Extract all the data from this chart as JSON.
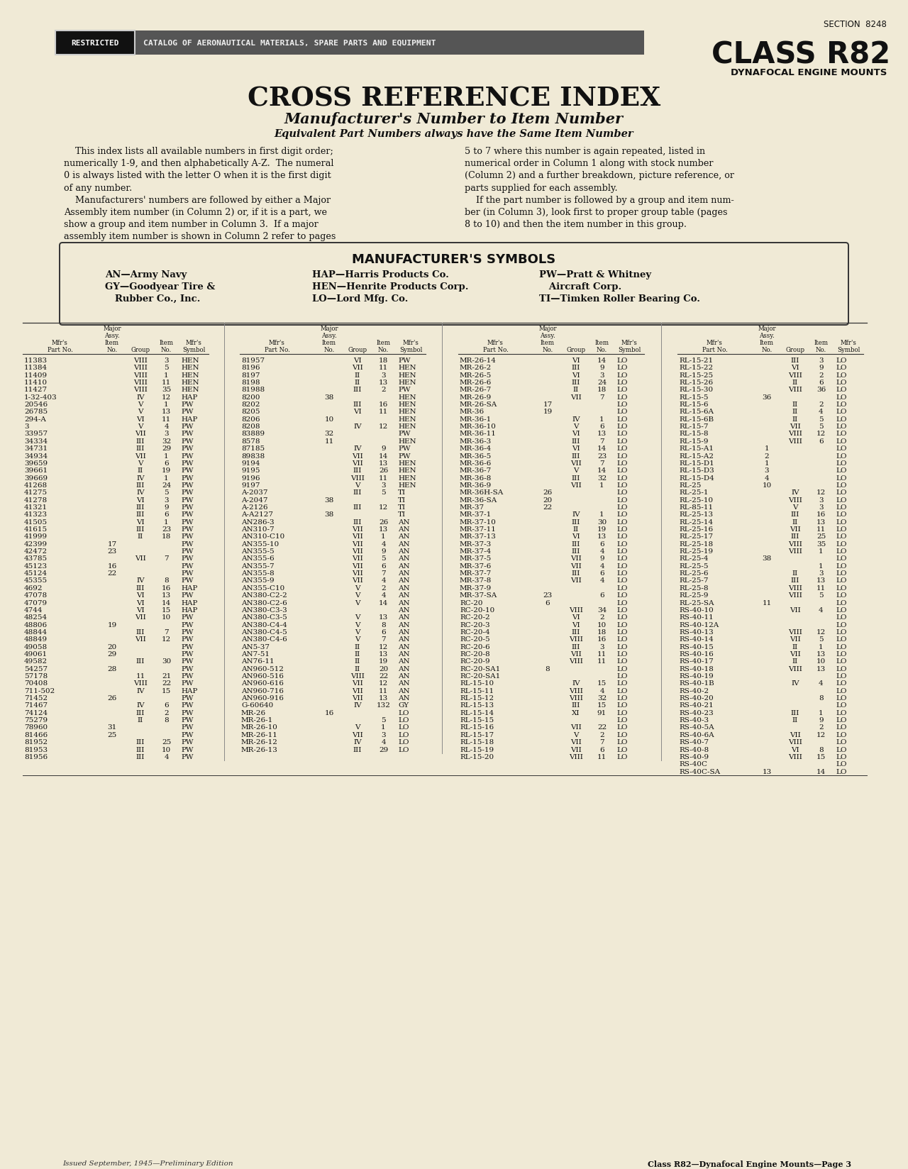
{
  "bg_color": "#f0ead6",
  "page_width": 12.8,
  "page_height": 16.49,
  "header_section": "SECTION  8248",
  "header_class": "CLASS R82",
  "header_dynafocal": "DYNAFOCAL ENGINE MOUNTS",
  "restricted_label": "RESTRICTED",
  "catalog_label": "CATALOG OF AERONAUTICAL MATERIALS, SPARE PARTS AND EQUIPMENT",
  "title_main": "CROSS REFERENCE INDEX",
  "title_sub1": "Manufacturer's Number to Item Number",
  "title_sub2": "Equivalent Part Numbers always have the Same Item Number",
  "body_left": [
    "    This index lists all available numbers in first digit order;",
    "numerically 1-9, and then alphabetically A-Z.  The numeral",
    "0 is always listed with the letter O when it is the first digit",
    "of any number.",
    "    Manufacturers' numbers are followed by either a Major",
    "Assembly item number (in Column 2) or, if it is a part, we",
    "show a group and item number in Column 3.  If a major",
    "assembly item number is shown in Column 2 refer to pages"
  ],
  "body_right": [
    "5 to 7 where this number is again repeated, listed in",
    "numerical order in Column 1 along with stock number",
    "(Column 2) and a further breakdown, picture reference, or",
    "parts supplied for each assembly.",
    "    If the part number is followed by a group and item num-",
    "ber (in Column 3), look first to proper group table (pages",
    "8 to 10) and then the item number in this group."
  ],
  "sym_title": "MANUFACTURER'S SYMBOLS",
  "sym_col1": [
    "AN—Army Navy",
    "GY—Goodyear Tire &",
    "   Rubber Co., Inc."
  ],
  "sym_col2": [
    "HAP—Harris Products Co.",
    "HEN—Henrite Products Corp.",
    "LO—Lord Mfg. Co."
  ],
  "sym_col3": [
    "PW—Pratt & Whitney",
    "   Aircraft Corp.",
    "TI—Timken Roller Bearing Co."
  ],
  "col1_rows": [
    [
      "11383",
      "",
      "VIII",
      "3",
      "HEN"
    ],
    [
      "11384",
      "",
      "VIII",
      "5",
      "HEN"
    ],
    [
      "11409",
      "",
      "VIII",
      "1",
      "HEN"
    ],
    [
      "11410",
      "",
      "VIII",
      "11",
      "HEN"
    ],
    [
      "11427",
      "",
      "VIII",
      "35",
      "HEN"
    ],
    [
      "1-32-403",
      "",
      "IV",
      "12",
      "HAP"
    ],
    [
      "20546",
      "",
      "V",
      "1",
      "PW"
    ],
    [
      "26785",
      "",
      "V",
      "13",
      "PW"
    ],
    [
      "294-A",
      "",
      "VI",
      "11",
      "HAP"
    ],
    [
      "3",
      "",
      "V",
      "4",
      "PW"
    ],
    [
      "33957",
      "",
      "VII",
      "3",
      "PW"
    ],
    [
      "34334",
      "",
      "III",
      "32",
      "PW"
    ],
    [
      "34731",
      "",
      "III",
      "29",
      "PW"
    ],
    [
      "34934",
      "",
      "VII",
      "1",
      "PW"
    ],
    [
      "39659",
      "",
      "V",
      "6",
      "PW"
    ],
    [
      "39661",
      "",
      "II",
      "19",
      "PW"
    ],
    [
      "39669",
      "",
      "IV",
      "1",
      "PW"
    ],
    [
      "41268",
      "",
      "III",
      "24",
      "PW"
    ],
    [
      "41275",
      "",
      "IV",
      "5",
      "PW"
    ],
    [
      "41278",
      "",
      "VI",
      "3",
      "PW"
    ],
    [
      "41321",
      "",
      "III",
      "9",
      "PW"
    ],
    [
      "41323",
      "",
      "III",
      "6",
      "PW"
    ],
    [
      "41505",
      "",
      "VI",
      "1",
      "PW"
    ],
    [
      "41615",
      "",
      "III",
      "23",
      "PW"
    ],
    [
      "41999",
      "",
      "II",
      "18",
      "PW"
    ],
    [
      "42399",
      "17",
      "",
      "",
      "PW"
    ],
    [
      "42472",
      "23",
      "",
      "",
      "PW"
    ],
    [
      "43785",
      "",
      "VII",
      "7",
      "PW"
    ],
    [
      "45123",
      "16",
      "",
      "",
      "PW"
    ],
    [
      "45124",
      "22",
      "",
      "",
      "PW"
    ],
    [
      "45355",
      "",
      "IV",
      "8",
      "PW"
    ],
    [
      "4692",
      "",
      "III",
      "16",
      "HAP"
    ],
    [
      "47078",
      "",
      "VI",
      "13",
      "PW"
    ],
    [
      "47079",
      "",
      "VI",
      "14",
      "HAP"
    ],
    [
      "4744",
      "",
      "VI",
      "15",
      "HAP"
    ],
    [
      "48254",
      "",
      "VII",
      "10",
      "PW"
    ],
    [
      "48806",
      "19",
      "",
      "",
      "PW"
    ],
    [
      "48844",
      "",
      "III",
      "7",
      "PW"
    ],
    [
      "48849",
      "",
      "VII",
      "12",
      "PW"
    ],
    [
      "49058",
      "20",
      "",
      "",
      "PW"
    ],
    [
      "49061",
      "29",
      "",
      "",
      "PW"
    ],
    [
      "49582",
      "",
      "III",
      "30",
      "PW"
    ],
    [
      "54257",
      "28",
      "",
      "",
      "PW"
    ],
    [
      "57178",
      "",
      "11",
      "21",
      "PW"
    ],
    [
      "70408",
      "",
      "VIII",
      "22",
      "PW"
    ],
    [
      "711-502",
      "",
      "IV",
      "15",
      "HAP"
    ],
    [
      "71452",
      "26",
      "",
      "",
      "PW"
    ],
    [
      "71467",
      "",
      "IV",
      "6",
      "PW"
    ],
    [
      "74124",
      "",
      "III",
      "2",
      "PW"
    ],
    [
      "75279",
      "",
      "II",
      "8",
      "PW"
    ],
    [
      "78960",
      "31",
      "",
      "",
      "PW"
    ],
    [
      "81466",
      "25",
      "",
      "",
      "PW"
    ],
    [
      "81952",
      "",
      "III",
      "25",
      "PW"
    ],
    [
      "81953",
      "",
      "III",
      "10",
      "PW"
    ],
    [
      "81956",
      "",
      "III",
      "4",
      "PW"
    ]
  ],
  "col2_rows": [
    [
      "81957",
      "",
      "VI",
      "18",
      "PW"
    ],
    [
      "8196",
      "",
      "VII",
      "11",
      "HEN"
    ],
    [
      "8197",
      "",
      "II",
      "3",
      "HEN"
    ],
    [
      "8198",
      "",
      "II",
      "13",
      "HEN"
    ],
    [
      "81988",
      "",
      "III",
      "2",
      "PW"
    ],
    [
      "8200",
      "38",
      "",
      "",
      "HEN"
    ],
    [
      "8202",
      "",
      "III",
      "16",
      "HEN"
    ],
    [
      "8205",
      "",
      "VI",
      "11",
      "HEN"
    ],
    [
      "8206",
      "10",
      "",
      "",
      "HEN"
    ],
    [
      "8208",
      "",
      "IV",
      "12",
      "HEN"
    ],
    [
      "83889",
      "32",
      "",
      "",
      "PW"
    ],
    [
      "8578",
      "11",
      "",
      "",
      "HEN"
    ],
    [
      "87185",
      "",
      "IV",
      "9",
      "PW"
    ],
    [
      "89838",
      "",
      "VII",
      "14",
      "PW"
    ],
    [
      "9194",
      "",
      "VII",
      "13",
      "HEN"
    ],
    [
      "9195",
      "",
      "III",
      "26",
      "HEN"
    ],
    [
      "9196",
      "",
      "VIII",
      "11",
      "HEN"
    ],
    [
      "9197",
      "",
      "V",
      "3",
      "HEN"
    ],
    [
      "A-2037",
      "",
      "III",
      "5",
      "TI"
    ],
    [
      "A-2047",
      "38",
      "",
      "",
      "TI"
    ],
    [
      "A-2126",
      "",
      "III",
      "12",
      "TI"
    ],
    [
      "A-A2127",
      "38",
      "",
      "",
      "TI"
    ],
    [
      "AN286-3",
      "",
      "III",
      "26",
      "AN"
    ],
    [
      "AN310-7",
      "",
      "VII",
      "13",
      "AN"
    ],
    [
      "AN310-C10",
      "",
      "VII",
      "1",
      "AN"
    ],
    [
      "AN355-10",
      "",
      "VII",
      "4",
      "AN"
    ],
    [
      "AN355-5",
      "",
      "VII",
      "9",
      "AN"
    ],
    [
      "AN355-6",
      "",
      "VII",
      "5",
      "AN"
    ],
    [
      "AN355-7",
      "",
      "VII",
      "6",
      "AN"
    ],
    [
      "AN355-8",
      "",
      "VII",
      "7",
      "AN"
    ],
    [
      "AN355-9",
      "",
      "VII",
      "4",
      "AN"
    ],
    [
      "AN355-C10",
      "",
      "V",
      "2",
      "AN"
    ],
    [
      "AN380-C2-2",
      "",
      "V",
      "4",
      "AN"
    ],
    [
      "AN380-C2-6",
      "",
      "V",
      "14",
      "AN"
    ],
    [
      "AN380-C3-3",
      "",
      "",
      "",
      "AN"
    ],
    [
      "AN380-C3-5",
      "",
      "V",
      "13",
      "AN"
    ],
    [
      "AN380-C4-4",
      "",
      "V",
      "8",
      "AN"
    ],
    [
      "AN380-C4-5",
      "",
      "V",
      "6",
      "AN"
    ],
    [
      "AN380-C4-6",
      "",
      "V",
      "7",
      "AN"
    ],
    [
      "AN5-37",
      "",
      "II",
      "12",
      "AN"
    ],
    [
      "AN7-51",
      "",
      "II",
      "13",
      "AN"
    ],
    [
      "AN76-11",
      "",
      "II",
      "19",
      "AN"
    ],
    [
      "AN960-512",
      "",
      "II",
      "20",
      "AN"
    ],
    [
      "AN960-516",
      "",
      "VIII",
      "22",
      "AN"
    ],
    [
      "AN960-616",
      "",
      "VII",
      "12",
      "AN"
    ],
    [
      "AN960-716",
      "",
      "VII",
      "11",
      "AN"
    ],
    [
      "AN960-916",
      "",
      "VII",
      "13",
      "AN"
    ],
    [
      "G-60640",
      "",
      "IV",
      "132",
      "GY"
    ],
    [
      "MR-26",
      "16",
      "",
      "",
      "LO"
    ],
    [
      "MR-26-1",
      "",
      "",
      "5",
      "LO"
    ],
    [
      "MR-26-10",
      "",
      "V",
      "1",
      "LO"
    ],
    [
      "MR-26-11",
      "",
      "VII",
      "3",
      "LO"
    ],
    [
      "MR-26-12",
      "",
      "IV",
      "4",
      "LO"
    ],
    [
      "MR-26-13",
      "",
      "III",
      "29",
      "LO"
    ]
  ],
  "col3_rows": [
    [
      "MR-26-14",
      "",
      "VI",
      "14",
      "LO"
    ],
    [
      "MR-26-2",
      "",
      "III",
      "9",
      "LO"
    ],
    [
      "MR-26-5",
      "",
      "VI",
      "3",
      "LO"
    ],
    [
      "MR-26-6",
      "",
      "III",
      "24",
      "LO"
    ],
    [
      "MR-26-7",
      "",
      "II",
      "18",
      "LO"
    ],
    [
      "MR-26-9",
      "",
      "VII",
      "7",
      "LO"
    ],
    [
      "MR-26-SA",
      "17",
      "",
      "",
      "LO"
    ],
    [
      "MR-36",
      "19",
      "",
      "",
      "LO"
    ],
    [
      "MR-36-1",
      "",
      "IV",
      "1",
      "LO"
    ],
    [
      "MR-36-10",
      "",
      "V",
      "6",
      "LO"
    ],
    [
      "MR-36-11",
      "",
      "VI",
      "13",
      "LO"
    ],
    [
      "MR-36-3",
      "",
      "III",
      "7",
      "LO"
    ],
    [
      "MR-36-4",
      "",
      "VI",
      "14",
      "LO"
    ],
    [
      "MR-36-5",
      "",
      "III",
      "23",
      "LO"
    ],
    [
      "MR-36-6",
      "",
      "VII",
      "7",
      "LO"
    ],
    [
      "MR-36-7",
      "",
      "V",
      "14",
      "LO"
    ],
    [
      "MR-36-8",
      "",
      "III",
      "32",
      "LO"
    ],
    [
      "MR-36-9",
      "",
      "VII",
      "1",
      "LO"
    ],
    [
      "MR-36H-SA",
      "26",
      "",
      "",
      "LO"
    ],
    [
      "MR-36-SA",
      "20",
      "",
      "",
      "LO"
    ],
    [
      "MR-37",
      "22",
      "",
      "",
      "LO"
    ],
    [
      "MR-37-1",
      "",
      "IV",
      "1",
      "LO"
    ],
    [
      "MR-37-10",
      "",
      "III",
      "30",
      "LO"
    ],
    [
      "MR-37-11",
      "",
      "II",
      "19",
      "LO"
    ],
    [
      "MR-37-13",
      "",
      "VI",
      "13",
      "LO"
    ],
    [
      "MR-37-3",
      "",
      "III",
      "6",
      "LO"
    ],
    [
      "MR-37-4",
      "",
      "III",
      "4",
      "LO"
    ],
    [
      "MR-37-5",
      "",
      "VII",
      "9",
      "LO"
    ],
    [
      "MR-37-6",
      "",
      "VII",
      "4",
      "LO"
    ],
    [
      "MR-37-7",
      "",
      "III",
      "6",
      "LO"
    ],
    [
      "MR-37-8",
      "",
      "VII",
      "4",
      "LO"
    ],
    [
      "MR-37-9",
      "",
      "",
      "",
      "LO"
    ],
    [
      "MR-37-SA",
      "23",
      "",
      "6",
      "LO"
    ],
    [
      "RC-20",
      "6",
      "",
      "",
      "LO"
    ],
    [
      "RC-20-10",
      "",
      "VIII",
      "34",
      "LO"
    ],
    [
      "RC-20-2",
      "",
      "VI",
      "2",
      "LO"
    ],
    [
      "RC-20-3",
      "",
      "VI",
      "10",
      "LO"
    ],
    [
      "RC-20-4",
      "",
      "III",
      "18",
      "LO"
    ],
    [
      "RC-20-5",
      "",
      "VIII",
      "16",
      "LO"
    ],
    [
      "RC-20-6",
      "",
      "III",
      "3",
      "LO"
    ],
    [
      "RC-20-8",
      "",
      "VII",
      "11",
      "LO"
    ],
    [
      "RC-20-9",
      "",
      "VIII",
      "11",
      "LO"
    ],
    [
      "RC-20-SA1",
      "8",
      "",
      "",
      "LO"
    ],
    [
      "RC-20-SA1",
      "",
      "",
      "",
      "LO"
    ],
    [
      "RL-15-10",
      "",
      "IV",
      "15",
      "LO"
    ],
    [
      "RL-15-11",
      "",
      "VIII",
      "4",
      "LO"
    ],
    [
      "RL-15-12",
      "",
      "VIII",
      "32",
      "LO"
    ],
    [
      "RL-15-13",
      "",
      "III",
      "15",
      "LO"
    ],
    [
      "RL-15-14",
      "",
      "XI",
      "91",
      "LO"
    ],
    [
      "RL-15-15",
      "",
      "",
      "",
      "LO"
    ],
    [
      "RL-15-16",
      "",
      "VII",
      "22",
      "LO"
    ],
    [
      "RL-15-17",
      "",
      "V",
      "2",
      "LO"
    ],
    [
      "RL-15-18",
      "",
      "VII",
      "7",
      "LO"
    ],
    [
      "RL-15-19",
      "",
      "VII",
      "6",
      "LO"
    ],
    [
      "RL-15-20",
      "",
      "VIII",
      "11",
      "LO"
    ]
  ],
  "col4_rows": [
    [
      "RL-15-21",
      "",
      "III",
      "3",
      "LO"
    ],
    [
      "RL-15-22",
      "",
      "VI",
      "9",
      "LO"
    ],
    [
      "RL-15-25",
      "",
      "VIII",
      "2",
      "LO"
    ],
    [
      "RL-15-26",
      "",
      "II",
      "6",
      "LO"
    ],
    [
      "RL-15-30",
      "",
      "VIII",
      "36",
      "LO"
    ],
    [
      "RL-15-5",
      "36",
      "",
      "",
      "LO"
    ],
    [
      "RL-15-6",
      "",
      "II",
      "2",
      "LO"
    ],
    [
      "RL-15-6A",
      "",
      "II",
      "4",
      "LO"
    ],
    [
      "RL-15-6B",
      "",
      "II",
      "5",
      "LO"
    ],
    [
      "RL-15-7",
      "",
      "VII",
      "5",
      "LO"
    ],
    [
      "RL-15-8",
      "",
      "VIII",
      "12",
      "LO"
    ],
    [
      "RL-15-9",
      "",
      "VIII",
      "6",
      "LO"
    ],
    [
      "RL-15-A1",
      "1",
      "",
      "",
      "LO"
    ],
    [
      "RL-15-A2",
      "2",
      "",
      "",
      "LO"
    ],
    [
      "RL-15-D1",
      "1",
      "",
      "",
      "LO"
    ],
    [
      "RL-15-D3",
      "3",
      "",
      "",
      "LO"
    ],
    [
      "RL-15-D4",
      "4",
      "",
      "",
      "LO"
    ],
    [
      "RL-25",
      "10",
      "",
      "",
      "LO"
    ],
    [
      "RL-25-1",
      "",
      "IV",
      "12",
      "LO"
    ],
    [
      "RL-25-10",
      "",
      "VIII",
      "3",
      "LO"
    ],
    [
      "RL-85-11",
      "",
      "V",
      "3",
      "LO"
    ],
    [
      "RL-25-13",
      "",
      "III",
      "16",
      "LO"
    ],
    [
      "RL-25-14",
      "",
      "II",
      "13",
      "LO"
    ],
    [
      "RL-25-16",
      "",
      "VII",
      "11",
      "LO"
    ],
    [
      "RL-25-17",
      "",
      "III",
      "25",
      "LO"
    ],
    [
      "RL-25-18",
      "",
      "VIII",
      "35",
      "LO"
    ],
    [
      "RL-25-19",
      "",
      "VIII",
      "1",
      "LO"
    ],
    [
      "RL-25-4",
      "38",
      "",
      "",
      "LO"
    ],
    [
      "RL-25-5",
      "",
      "",
      "1",
      "LO"
    ],
    [
      "RL-25-6",
      "",
      "II",
      "3",
      "LO"
    ],
    [
      "RL-25-7",
      "",
      "III",
      "13",
      "LO"
    ],
    [
      "RL-25-8",
      "",
      "VIII",
      "11",
      "LO"
    ],
    [
      "RL-25-9",
      "",
      "VIII",
      "5",
      "LO"
    ],
    [
      "RL-25-SA",
      "11",
      "",
      "",
      "LO"
    ],
    [
      "RS-40-10",
      "",
      "VII",
      "4",
      "LO"
    ],
    [
      "RS-40-11",
      "",
      "",
      "",
      "LO"
    ],
    [
      "RS-40-12A",
      "",
      "",
      "",
      "LO"
    ],
    [
      "RS-40-13",
      "",
      "VIII",
      "12",
      "LO"
    ],
    [
      "RS-40-14",
      "",
      "VII",
      "5",
      "LO"
    ],
    [
      "RS-40-15",
      "",
      "II",
      "1",
      "LO"
    ],
    [
      "RS-40-16",
      "",
      "VII",
      "13",
      "LO"
    ],
    [
      "RS-40-17",
      "",
      "II",
      "10",
      "LO"
    ],
    [
      "RS-40-18",
      "",
      "VIII",
      "13",
      "LO"
    ],
    [
      "RS-40-19",
      "",
      "",
      "",
      "LO"
    ],
    [
      "RS-40-1B",
      "",
      "IV",
      "4",
      "LO"
    ],
    [
      "RS-40-2",
      "",
      "",
      "",
      "LO"
    ],
    [
      "RS-40-20",
      "",
      "",
      "8",
      "LO"
    ],
    [
      "RS-40-21",
      "",
      "",
      "",
      "LO"
    ],
    [
      "RS-40-23",
      "",
      "III",
      "1",
      "LO"
    ],
    [
      "RS-40-3",
      "",
      "II",
      "9",
      "LO"
    ],
    [
      "RS-40-5A",
      "",
      "",
      "2",
      "LO"
    ],
    [
      "RS-40-6A",
      "",
      "VII",
      "12",
      "LO"
    ],
    [
      "RS-40-7",
      "",
      "VIII",
      "",
      "LO"
    ],
    [
      "RS-40-8",
      "",
      "VI",
      "8",
      "LO"
    ],
    [
      "RS-40-9",
      "",
      "VIII",
      "15",
      "LO"
    ],
    [
      "RS-40C",
      "",
      "",
      "",
      "LO"
    ],
    [
      "RS-40C-SA",
      "13",
      "",
      "14",
      "LO"
    ]
  ],
  "footer_left": "Issued September, 1945—Preliminary Edition",
  "footer_right": "Class R82—Dynafocal Engine Mounts—Page 3"
}
